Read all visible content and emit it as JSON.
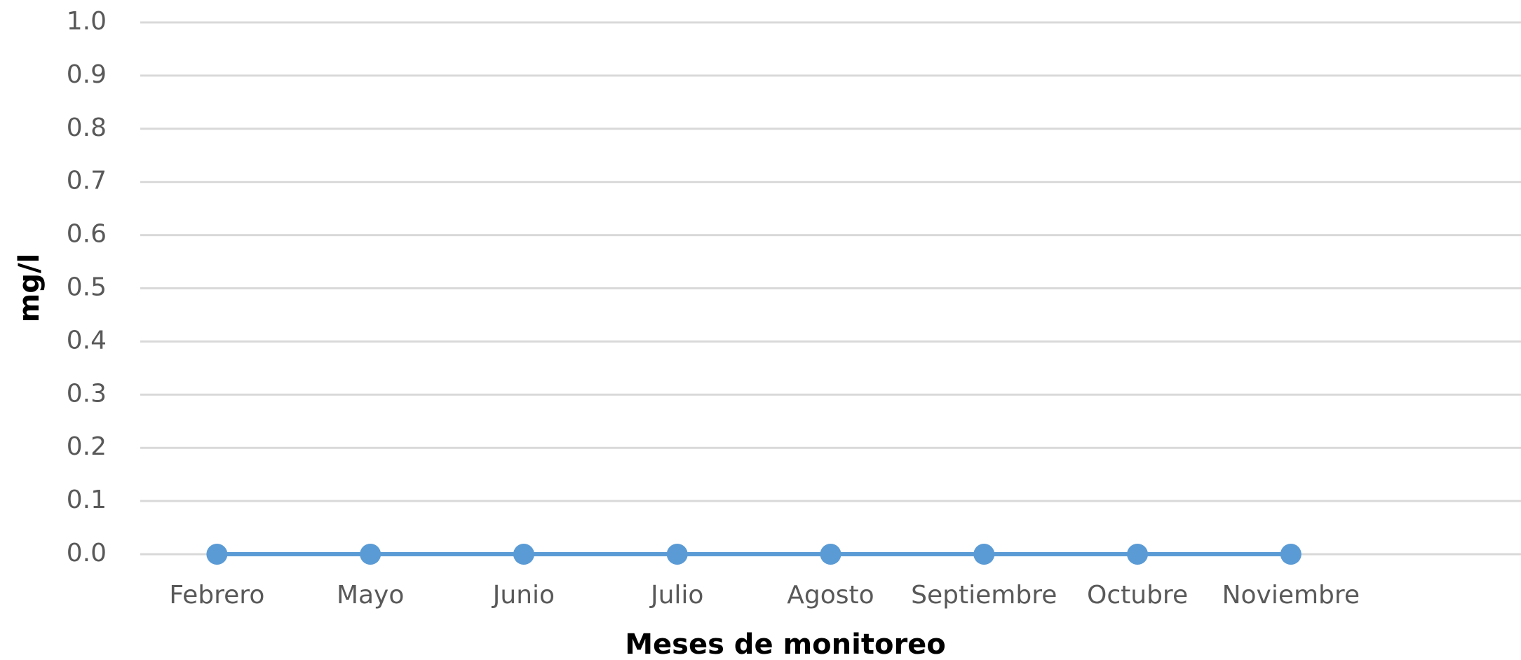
{
  "chart_data": {
    "type": "line",
    "x_label": "Meses de monitoreo",
    "y_label": "mg/l",
    "categories": [
      "Febrero",
      "Mayo",
      "Junio",
      "Julio",
      "Agosto",
      "Septiembre",
      "Octubre",
      "Noviembre",
      null
    ],
    "series": [
      {
        "name": null,
        "color": "#5b9bd5",
        "values": [
          0,
          0,
          0,
          0,
          0,
          0,
          0,
          0,
          null
        ]
      }
    ],
    "ylim": [
      0,
      1
    ],
    "yticks": [
      {
        "value": 0,
        "label": "0.0"
      },
      {
        "value": 0.1,
        "label": "0.1"
      },
      {
        "value": 0.2,
        "label": "0.2"
      },
      {
        "value": 0.3,
        "label": "0.3"
      },
      {
        "value": 0.4,
        "label": "0.4"
      },
      {
        "value": 0.5,
        "label": "0.5"
      },
      {
        "value": 0.6,
        "label": "0.6"
      },
      {
        "value": 0.7,
        "label": "0.7"
      },
      {
        "value": 0.8,
        "label": "0.8"
      },
      {
        "value": 0.9,
        "label": "0.9"
      },
      {
        "value": 1,
        "label": "1.0"
      }
    ],
    "grid": true
  }
}
